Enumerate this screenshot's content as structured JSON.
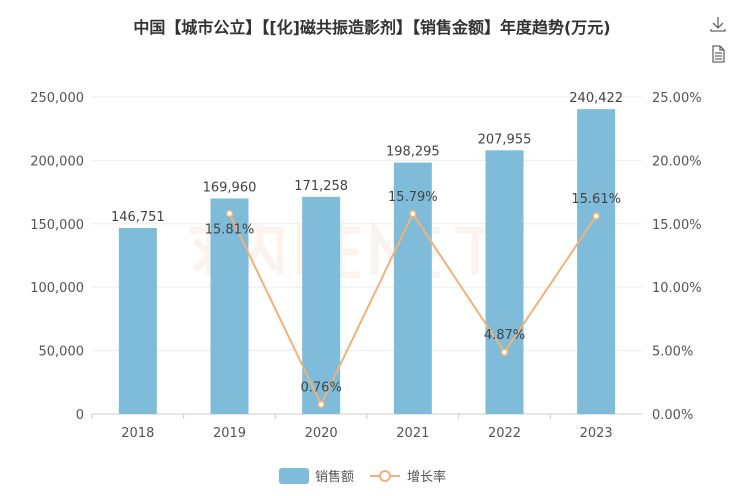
{
  "title": "中国【城市公立】【[化]磁共振造影剂】【销售金额】年度趋势(万元)",
  "toolbox": {
    "download_icon": "download-icon",
    "data_view_icon": "document-icon"
  },
  "watermark": "米内MENET",
  "colors": {
    "bar": "#7ebcda",
    "line": "#f0b27a",
    "axis_text": "#555555",
    "grid": "#eeeeee"
  },
  "chart_data": {
    "type": "bar+line",
    "title": "中国【城市公立】【[化]磁共振造影剂】【销售金额】年度趋势(万元)",
    "categories": [
      "2018",
      "2019",
      "2020",
      "2021",
      "2022",
      "2023"
    ],
    "series": [
      {
        "name": "销售额",
        "type": "bar",
        "axis": "left",
        "values": [
          146751,
          169960,
          171258,
          198295,
          207955,
          240422
        ],
        "labels": [
          "146,751",
          "169,960",
          "171,258",
          "198,295",
          "207,955",
          "240,422"
        ]
      },
      {
        "name": "增长率",
        "type": "line",
        "axis": "right",
        "values": [
          null,
          15.81,
          0.76,
          15.79,
          4.87,
          15.61
        ],
        "labels": [
          "",
          "15.81%",
          "0.76%",
          "15.79%",
          "4.87%",
          "15.61%"
        ]
      }
    ],
    "y_left": {
      "range": [
        0,
        250000
      ],
      "ticks": [
        "0",
        "50,000",
        "100,000",
        "150,000",
        "200,000",
        "250,000"
      ]
    },
    "y_right": {
      "range": [
        0,
        25
      ],
      "ticks": [
        "0.00%",
        "5.00%",
        "10.00%",
        "15.00%",
        "20.00%",
        "25.00%"
      ]
    },
    "grid": true,
    "legend": "bottom-center"
  }
}
